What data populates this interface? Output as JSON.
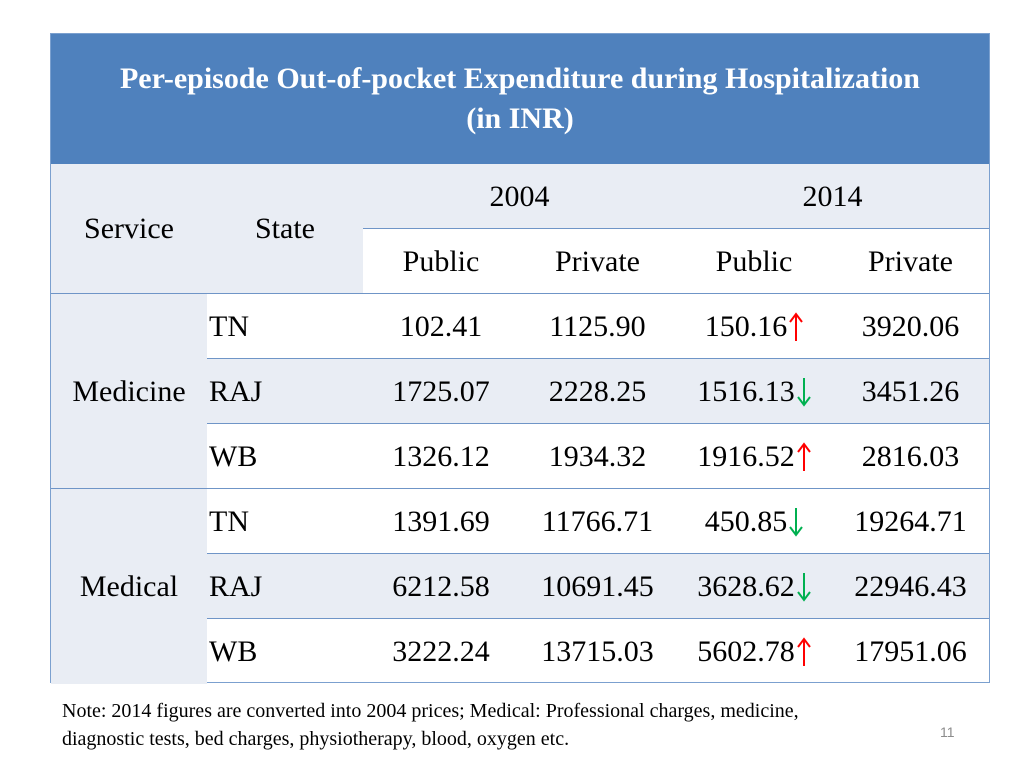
{
  "title": {
    "line1": "Per-episode Out-of-pocket Expenditure during Hospitalization",
    "line2": "(in INR)"
  },
  "header": {
    "service": "Service",
    "state": "State",
    "year_2004": "2004",
    "year_2014": "2014",
    "public_2004": "Public",
    "private_2004": "Private",
    "public_2014": "Public",
    "private_2014": "Private"
  },
  "groups": [
    {
      "service": "Medicine",
      "rows": [
        {
          "state": "TN",
          "pub2004": "102.41",
          "priv2004": "1125.90",
          "pub2014": "150.16",
          "trend": "up",
          "priv2014": "3920.06"
        },
        {
          "state": "RAJ",
          "pub2004": "1725.07",
          "priv2004": "2228.25",
          "pub2014": "1516.13",
          "trend": "down",
          "priv2014": "3451.26"
        },
        {
          "state": "WB",
          "pub2004": "1326.12",
          "priv2004": "1934.32",
          "pub2014": "1916.52",
          "trend": "up",
          "priv2014": "2816.03"
        }
      ]
    },
    {
      "service": "Medical",
      "rows": [
        {
          "state": "TN",
          "pub2004": "1391.69",
          "priv2004": "11766.71",
          "pub2014": "450.85",
          "trend": "down",
          "priv2014": "19264.71"
        },
        {
          "state": "RAJ",
          "pub2004": "6212.58",
          "priv2004": "10691.45",
          "pub2014": "3628.62",
          "trend": "down",
          "priv2014": "22946.43"
        },
        {
          "state": "WB",
          "pub2004": "3222.24",
          "priv2004": "13715.03",
          "pub2014": "5602.78",
          "trend": "up",
          "priv2014": "17951.06"
        }
      ]
    }
  ],
  "note": {
    "line1": "Note: 2014 figures are converted into 2004 prices; Medical: Professional charges, medicine,",
    "line2": "diagnostic tests, bed charges, physiotherapy, blood, oxygen etc."
  },
  "page_number": "11",
  "colors": {
    "header_blue": "#4f81bd",
    "band_light": "#e9edf4",
    "up_arrow": "#ff0000",
    "down_arrow": "#00b050"
  },
  "icons": {
    "up": "arrow-up-icon",
    "down": "arrow-down-icon"
  }
}
